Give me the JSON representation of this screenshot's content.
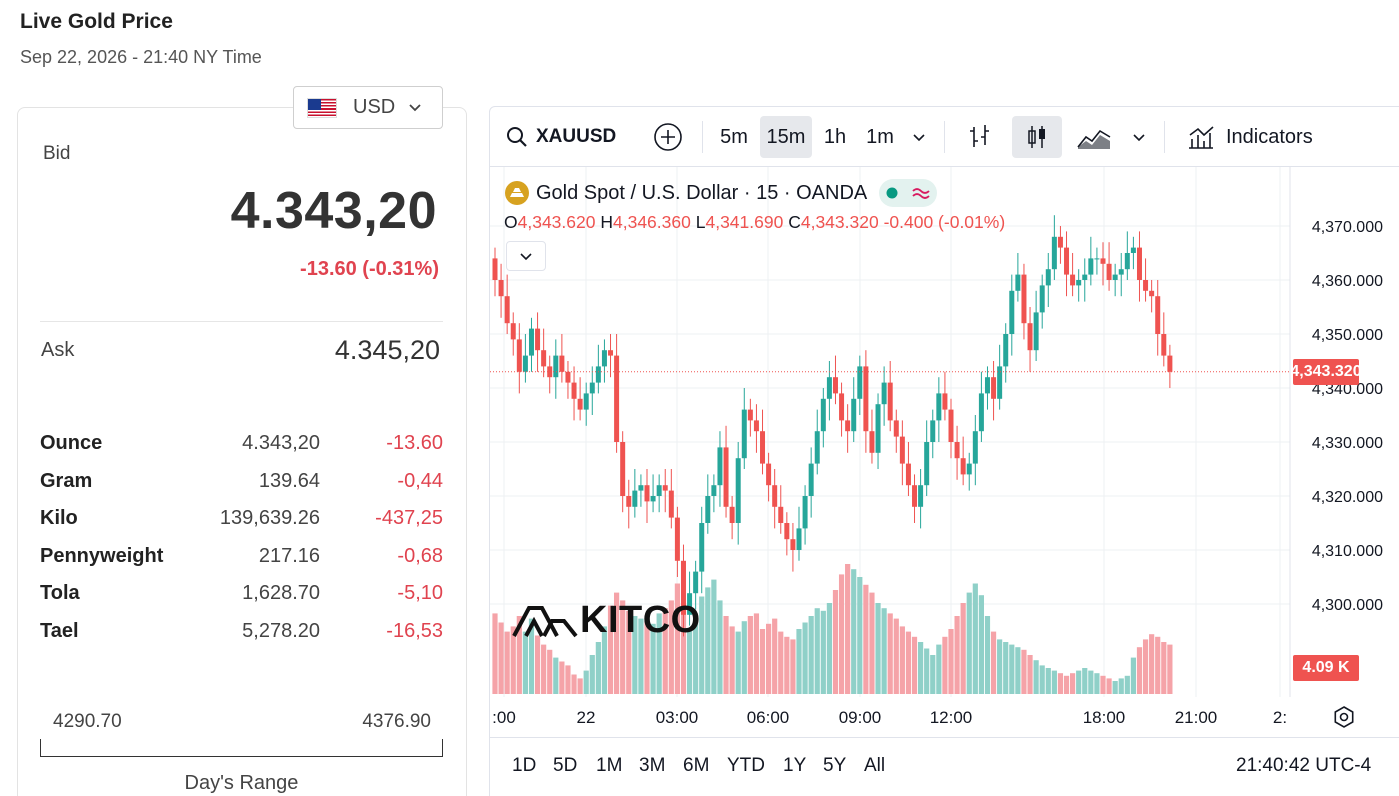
{
  "header": {
    "title": "Live Gold Price",
    "time": "Sep 22, 2026 - 21:40 NY Time"
  },
  "currency": {
    "selected": "USD"
  },
  "bid": {
    "label": "Bid",
    "value": "4.343,20",
    "change": "-13.60 (-0.31%)"
  },
  "ask": {
    "label": "Ask",
    "value": "4.345,20"
  },
  "units": [
    {
      "name": "Ounce",
      "price": "4.343,20",
      "change": "-13.60"
    },
    {
      "name": "Gram",
      "price": "139.64",
      "change": "-0,44"
    },
    {
      "name": "Kilo",
      "price": "139,639.26",
      "change": "-437,25"
    },
    {
      "name": "Pennyweight",
      "price": "217.16",
      "change": "-0,68"
    },
    {
      "name": "Tola",
      "price": "1,628.70",
      "change": "-5,10"
    },
    {
      "name": "Tael",
      "price": "5,278.20",
      "change": "-16,53"
    }
  ],
  "day_range": {
    "low": "4290.70",
    "high": "4376.90",
    "label": "Day's Range"
  },
  "toolbar": {
    "symbol": "XAUUSD",
    "intervals": [
      "5m",
      "15m",
      "1h",
      "1m"
    ],
    "active_interval": "15m",
    "indicators_label": "Indicators"
  },
  "legend": {
    "title": "Gold Spot / U.S. Dollar · 15 · OANDA",
    "o_label": "O",
    "o_value": "4,343.620",
    "h_label": "H",
    "h_value": "4,346.360",
    "l_label": "L",
    "l_value": "4,341.690",
    "c_label": "C",
    "c_value": "4,343.320",
    "change": "-0.400 (-0.01%)"
  },
  "watermark": "KITCO",
  "price_tag": "4,343.320",
  "volume_tag": "4.09 K",
  "ranges": [
    "1D",
    "5D",
    "1M",
    "3M",
    "6M",
    "YTD",
    "1Y",
    "5Y",
    "All"
  ],
  "clock": "21:40:42 UTC-4",
  "colors": {
    "up": "#26a69a",
    "down": "#ef5350",
    "up_vol": "#8fd0c8",
    "down_vol": "#f5a3a8"
  },
  "chart_data": {
    "type": "candlestick",
    "y_ticks": [
      "4,300.000",
      "4,310.000",
      "4,320.000",
      "4,330.000",
      "4,340.000",
      "4,350.000",
      "4,360.000",
      "4,370.000"
    ],
    "x_ticks": [
      ":00",
      "22",
      "03:00",
      "06:00",
      "09:00",
      "12:00",
      "18:00",
      "21:00",
      "2:"
    ],
    "ylim": [
      4290,
      4373
    ],
    "closes": [
      4360,
      4357,
      4352,
      4349,
      4343,
      4346,
      4351,
      4347,
      4344,
      4342,
      4346,
      4343,
      4341,
      4338,
      4336,
      4339,
      4341,
      4344,
      4347,
      4346,
      4330,
      4320,
      4318,
      4321,
      4322,
      4319,
      4320,
      4322,
      4321,
      4316,
      4308,
      4298,
      4302,
      4306,
      4315,
      4320,
      4322,
      4329,
      4318,
      4315,
      4327,
      4336,
      4334,
      4332,
      4326,
      4322,
      4318,
      4315,
      4312,
      4310,
      4314,
      4320,
      4326,
      4332,
      4338,
      4342,
      4339,
      4334,
      4332,
      4338,
      4344,
      4332,
      4328,
      4337,
      4341,
      4334,
      4331,
      4326,
      4322,
      4318,
      4322,
      4330,
      4334,
      4339,
      4336,
      4330,
      4327,
      4324,
      4326,
      4332,
      4339,
      4342,
      4338,
      4344,
      4350,
      4358,
      4361,
      4352,
      4347,
      4354,
      4359,
      4362,
      4368,
      4366,
      4361,
      4359,
      4360,
      4361,
      4364,
      4364,
      4363,
      4360,
      4361,
      4362,
      4365,
      4366,
      4360,
      4358,
      4357,
      4350,
      4346,
      4343
    ],
    "volumes": [
      62,
      55,
      48,
      52,
      60,
      48,
      58,
      45,
      38,
      34,
      28,
      25,
      22,
      15,
      12,
      18,
      30,
      40,
      52,
      68,
      78,
      72,
      64,
      60,
      58,
      56,
      54,
      62,
      66,
      72,
      85,
      70,
      50,
      56,
      75,
      82,
      88,
      72,
      60,
      52,
      48,
      56,
      60,
      62,
      50,
      54,
      58,
      48,
      44,
      42,
      50,
      55,
      60,
      66,
      64,
      70,
      80,
      92,
      100,
      96,
      90,
      84,
      78,
      70,
      66,
      62,
      58,
      52,
      48,
      44,
      40,
      35,
      30,
      38,
      44,
      50,
      60,
      70,
      78,
      85,
      76,
      60,
      48,
      42,
      40,
      38,
      36,
      34,
      30,
      26,
      22,
      20,
      18,
      16,
      14,
      16,
      18,
      20,
      18,
      16,
      14,
      12,
      10,
      12,
      14,
      28,
      36,
      42,
      46,
      44,
      40,
      38
    ]
  }
}
